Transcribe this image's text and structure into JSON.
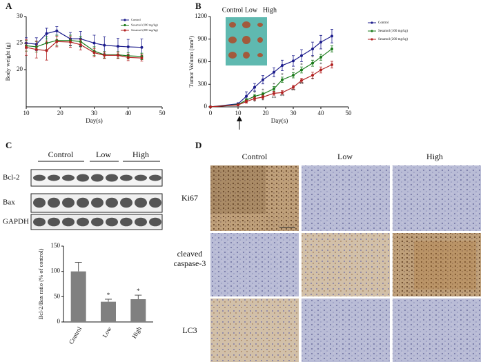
{
  "panel_labels": [
    "A",
    "B",
    "C",
    "D"
  ],
  "chart_data": [
    {
      "type": "line",
      "x_label": "Day(s)",
      "y_label": "Body weight (g)",
      "x": [
        10,
        13,
        16,
        19,
        23,
        26,
        30,
        33,
        37,
        40,
        44
      ],
      "series": [
        {
          "name": "Control",
          "color": "#1c1c8c",
          "values": [
            25,
            24.8,
            26.8,
            27.3,
            25.8,
            25.8,
            25,
            24.6,
            24.4,
            24.3,
            24.2
          ],
          "errors": [
            1,
            1.2,
            1,
            0.8,
            1.2,
            1.4,
            1.5,
            1.6,
            1.5,
            1.4,
            1.6
          ]
        },
        {
          "name": "Sesamol (100 mg/kg)",
          "color": "#1a7a1a",
          "values": [
            24.5,
            24.3,
            25,
            25.5,
            25.5,
            25.3,
            23.5,
            22.8,
            22.8,
            22.6,
            22.5
          ],
          "errors": [
            1,
            1,
            1.2,
            1,
            1,
            1,
            0.8,
            0.6,
            0.6,
            0.6,
            0.6
          ]
        },
        {
          "name": "Sesamol (200 mg/kg)",
          "color": "#b22222",
          "values": [
            24.2,
            23.8,
            23.6,
            25.3,
            25.2,
            24.7,
            23.2,
            22.7,
            22.7,
            22.3,
            22.2
          ],
          "errors": [
            1.5,
            1.6,
            1.8,
            1,
            1,
            1,
            0.8,
            0.6,
            0.6,
            0.6,
            0.6
          ]
        }
      ],
      "xlim": [
        10,
        50
      ],
      "xticks": [
        10,
        20,
        30,
        40,
        50
      ],
      "ylim": [
        13,
        30
      ],
      "yticks": [
        20,
        25,
        30
      ],
      "legend": "upper right"
    },
    {
      "type": "line",
      "x_label": "Day(s)",
      "y_label": "Tumor Volumn (mm³)",
      "x": [
        0,
        10,
        13,
        16,
        19,
        23,
        26,
        30,
        33,
        37,
        40,
        44
      ],
      "series": [
        {
          "name": "Control",
          "color": "#1c1c8c",
          "values": [
            0,
            40,
            140,
            260,
            360,
            460,
            550,
            610,
            680,
            770,
            860,
            940
          ],
          "errors": [
            0,
            15,
            60,
            50,
            55,
            60,
            70,
            70,
            80,
            90,
            90,
            90
          ]
        },
        {
          "name": "Sesamol (100 mg/kg)",
          "color": "#1a7a1a",
          "values": [
            0,
            30,
            90,
            140,
            170,
            240,
            360,
            420,
            490,
            580,
            660,
            770
          ],
          "errors": [
            0,
            10,
            20,
            25,
            25,
            30,
            35,
            35,
            40,
            40,
            40,
            40
          ]
        },
        {
          "name": "Sesamol (200 mg/kg)",
          "color": "#b22222",
          "values": [
            0,
            25,
            70,
            110,
            130,
            180,
            190,
            260,
            350,
            420,
            490,
            560
          ],
          "errors": [
            0,
            10,
            20,
            20,
            25,
            25,
            25,
            30,
            30,
            40,
            40,
            45
          ]
        }
      ],
      "annotations": [
        {
          "text": "*",
          "x": 16,
          "y": 180
        },
        {
          "text": "*",
          "x": 19,
          "y": 210
        },
        {
          "text": "*",
          "x": 23,
          "y": 290
        },
        {
          "text": "*",
          "x": 26,
          "y": 420
        },
        {
          "text": "*",
          "x": 30,
          "y": 480
        },
        {
          "text": "*",
          "x": 33,
          "y": 550
        },
        {
          "text": "*",
          "x": 37,
          "y": 650
        },
        {
          "text": "*",
          "x": 40,
          "y": 560
        },
        {
          "text": "*",
          "x": 16,
          "y": 60
        },
        {
          "text": "*",
          "x": 19,
          "y": 80
        },
        {
          "text": "**",
          "x": 23,
          "y": 110
        },
        {
          "text": "**",
          "x": 26,
          "y": 140
        },
        {
          "text": "**",
          "x": 30,
          "y": 210
        },
        {
          "text": "**",
          "x": 33,
          "y": 300
        },
        {
          "text": "*",
          "x": 37,
          "y": 360
        }
      ],
      "inset_labels": [
        "Control",
        "Low",
        "High"
      ],
      "xlim": [
        0,
        50
      ],
      "xticks": [
        0,
        10,
        20,
        30,
        40,
        50
      ],
      "ylim": [
        0,
        1200
      ],
      "yticks": [
        0,
        300,
        600,
        900,
        1200
      ],
      "legend": "right"
    },
    {
      "type": "bar",
      "y_label": "Bcl-2/Bax ratio (% of control)",
      "categories": [
        "Control",
        "Low",
        "High"
      ],
      "values": [
        100,
        40,
        45
      ],
      "errors": [
        18,
        5,
        8
      ],
      "color": "#808080",
      "annotations": [
        "*",
        "*"
      ],
      "annotation_categories": [
        1,
        2
      ],
      "ylim": [
        0,
        150
      ],
      "yticks": [
        0,
        50,
        100,
        150
      ]
    }
  ],
  "blot": {
    "groups": [
      "Control",
      "Low",
      "High"
    ],
    "rows": [
      "Bcl-2",
      "Bax",
      "GAPDH"
    ]
  },
  "ihc": {
    "columns": [
      "Control",
      "Low",
      "High"
    ],
    "rows": [
      [
        "Ki67"
      ],
      [
        "cleaved",
        "caspase-3"
      ],
      [
        "LC3"
      ]
    ]
  }
}
